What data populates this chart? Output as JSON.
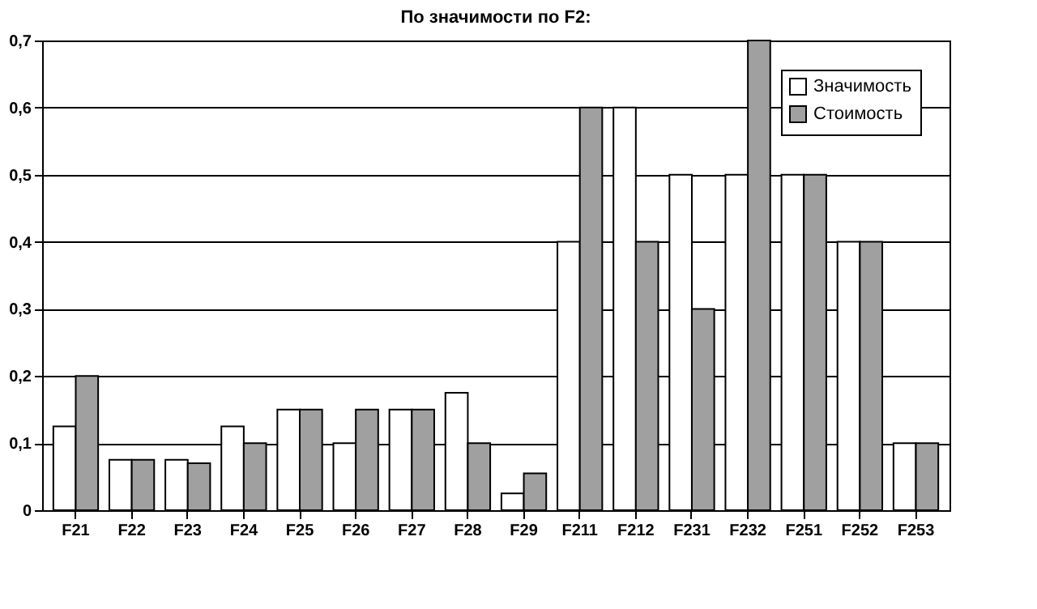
{
  "chart_data": {
    "type": "bar",
    "title": "По значимости по F2:",
    "categories": [
      "F21",
      "F22",
      "F23",
      "F24",
      "F25",
      "F26",
      "F27",
      "F28",
      "F29",
      "F211",
      "F212",
      "F231",
      "F232",
      "F251",
      "F252",
      "F253"
    ],
    "series": [
      {
        "name": "Значимость",
        "color": "#ffffff",
        "values": [
          0.125,
          0.075,
          0.075,
          0.125,
          0.15,
          0.1,
          0.15,
          0.175,
          0.025,
          0.4,
          0.6,
          0.5,
          0.5,
          0.5,
          0.4,
          0.1
        ]
      },
      {
        "name": "Стоимость",
        "color": "#a0a0a0",
        "values": [
          0.2,
          0.075,
          0.07,
          0.1,
          0.15,
          0.15,
          0.15,
          0.1,
          0.055,
          0.6,
          0.4,
          0.3,
          0.7,
          0.5,
          0.4,
          0.1
        ]
      }
    ],
    "ylim": [
      0,
      0.7
    ],
    "yticks": [
      {
        "value": 0,
        "label": "0"
      },
      {
        "value": 0.1,
        "label": "0,1"
      },
      {
        "value": 0.2,
        "label": "0,2"
      },
      {
        "value": 0.3,
        "label": "0,3"
      },
      {
        "value": 0.4,
        "label": "0,4"
      },
      {
        "value": 0.5,
        "label": "0,5"
      },
      {
        "value": 0.6,
        "label": "0,6"
      },
      {
        "value": 0.7,
        "label": "0,7"
      }
    ],
    "grid": "y",
    "legend": "top right"
  }
}
